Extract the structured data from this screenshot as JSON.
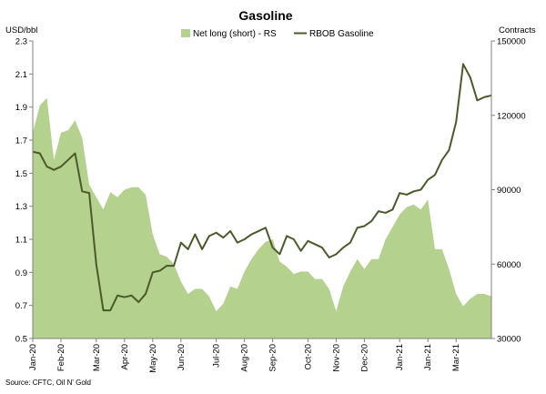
{
  "chart_data": {
    "type": "area+line",
    "title": "Gasoline",
    "left_axis": {
      "unit_label": "USD/bbl",
      "min": 0.5,
      "max": 2.3,
      "step": 0.2,
      "ticks": [
        "0.5",
        "0.7",
        "0.9",
        "1.1",
        "1.3",
        "1.5",
        "1.7",
        "1.9",
        "2.1",
        "2.3"
      ]
    },
    "right_axis": {
      "unit_label": "Contracts",
      "min": 30000,
      "max": 150000,
      "step": 30000,
      "ticks": [
        "30000",
        "60000",
        "90000",
        "120000",
        "150000"
      ]
    },
    "x_ticks": [
      {
        "label": "Jan-20",
        "index": 0
      },
      {
        "label": "Feb-20",
        "index": 4
      },
      {
        "label": "Mar-20",
        "index": 9
      },
      {
        "label": "Apr-20",
        "index": 13
      },
      {
        "label": "May-20",
        "index": 17
      },
      {
        "label": "Jun-20",
        "index": 21
      },
      {
        "label": "Jul-20",
        "index": 26
      },
      {
        "label": "Aug-20",
        "index": 30
      },
      {
        "label": "Sep-20",
        "index": 34
      },
      {
        "label": "Oct-20",
        "index": 39
      },
      {
        "label": "Nov-20",
        "index": 43
      },
      {
        "label": "Dec-20",
        "index": 47
      },
      {
        "label": "Jan-21",
        "index": 52
      },
      {
        "label": "Jan-21",
        "index": 56
      },
      {
        "label": "Mar-21",
        "index": 60
      }
    ],
    "colors": {
      "area": "#b5d18e",
      "line": "#4a5a2a",
      "axis": "#808080",
      "grid": "#d9d9d9"
    },
    "series": [
      {
        "name": "Net long (short) - RS",
        "type": "area",
        "axis": "right",
        "values": [
          113000,
          124000,
          127000,
          102000,
          113000,
          114000,
          118000,
          111000,
          92000,
          87000,
          82000,
          89000,
          87000,
          90000,
          91000,
          91000,
          88000,
          72000,
          64000,
          63000,
          60000,
          53000,
          48000,
          50000,
          50000,
          47000,
          41000,
          44000,
          51000,
          50000,
          57000,
          62000,
          66000,
          69000,
          70000,
          61000,
          59000,
          56000,
          57000,
          57000,
          54000,
          54000,
          50000,
          41000,
          51000,
          57000,
          62000,
          58000,
          62000,
          62000,
          70000,
          75000,
          80000,
          83000,
          84000,
          82000,
          86000,
          66000,
          66000,
          58000,
          48000,
          43000,
          46000,
          48000,
          48000,
          47000
        ]
      },
      {
        "name": "RBOB Gasoline",
        "type": "line",
        "axis": "left",
        "values": [
          1.63,
          1.62,
          1.54,
          1.52,
          1.54,
          1.58,
          1.62,
          1.39,
          1.38,
          0.95,
          0.67,
          0.67,
          0.76,
          0.75,
          0.76,
          0.72,
          0.77,
          0.9,
          0.91,
          0.94,
          0.94,
          1.08,
          1.04,
          1.13,
          1.04,
          1.12,
          1.14,
          1.11,
          1.15,
          1.08,
          1.1,
          1.13,
          1.15,
          1.17,
          1.05,
          1.01,
          1.12,
          1.1,
          1.03,
          1.09,
          1.07,
          1.05,
          0.99,
          1.01,
          1.05,
          1.08,
          1.17,
          1.18,
          1.21,
          1.27,
          1.26,
          1.28,
          1.38,
          1.37,
          1.39,
          1.4,
          1.46,
          1.49,
          1.58,
          1.64,
          1.81,
          2.16,
          2.08,
          1.94,
          1.96,
          1.97
        ]
      }
    ],
    "legend": {
      "placement": "top-center"
    },
    "grid": false,
    "source": "Source: CFTC, Oil N' Gold"
  }
}
